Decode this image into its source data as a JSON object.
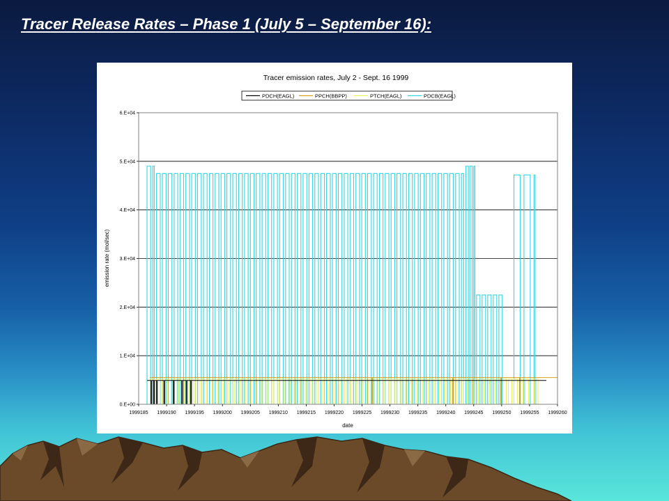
{
  "slide": {
    "title": "Tracer Release Rates – Phase 1 (July 5 – September 16):"
  },
  "chart_data": {
    "type": "line",
    "title": "Tracer emission rates, July 2 - Sept. 16 1999",
    "xlabel": "date",
    "ylabel": "emission rate (mol/sec)",
    "x_ticks": [
      "1999185",
      "1999190",
      "1999195",
      "1999200",
      "1999205",
      "1999210",
      "1999215",
      "1999220",
      "1999225",
      "1999230",
      "1999235",
      "1999240",
      "1999245",
      "1999250",
      "1999255",
      "1999260"
    ],
    "y_ticks": [
      "0.E+00",
      "1.E+04",
      "2.E+04",
      "3.E+04",
      "4.E+04",
      "5.E+04",
      "6.E+04"
    ],
    "xlim": [
      1999185,
      1999260
    ],
    "ylim": [
      0,
      60000
    ],
    "grid": "horizontal",
    "legend_position": "top",
    "series": [
      {
        "name": "PDCH(EAGL)",
        "color": "#000000",
        "shape": "steady",
        "start": 1999186.5,
        "end": 1999258,
        "level": 4900,
        "dips": [
          1999187.2,
          1999187.7,
          1999188.2,
          1999189.5,
          1999191.2,
          1999192.7,
          1999193.5,
          1999194.3
        ]
      },
      {
        "name": "PPCH(BBPP)",
        "color": "#d4a017",
        "shape": "steady",
        "start": 1999187,
        "end": 1999260,
        "level": 5500,
        "dips": [
          1999226.7,
          1999241.2,
          1999249.8,
          1999253.2
        ]
      },
      {
        "name": "PTCH(EAGL)",
        "color": "#f2ee5a",
        "shape": "pulses",
        "start": 1999187.2,
        "end": 1999256.5,
        "level": 5200,
        "period": 1,
        "low": 0
      },
      {
        "name": "PDCB(EAGL)",
        "color": "#33d6e6",
        "shape": "pulses",
        "level": 47000,
        "runs": [
          {
            "start": 1999186.5,
            "end": 1999187.8,
            "level": 49000,
            "period": 1.05
          },
          {
            "start": 1999188.2,
            "end": 1999243.2,
            "level": 47500,
            "period": 1.05
          },
          {
            "start": 1999243.6,
            "end": 1999245.2,
            "level": 49000,
            "period": 0.7
          },
          {
            "start": 1999245.5,
            "end": 1999250.1,
            "level": 22500,
            "period": 1.0
          },
          {
            "start": 1999252.2,
            "end": 1999256.0,
            "level": 47200,
            "period": 1.8
          }
        ]
      }
    ]
  }
}
